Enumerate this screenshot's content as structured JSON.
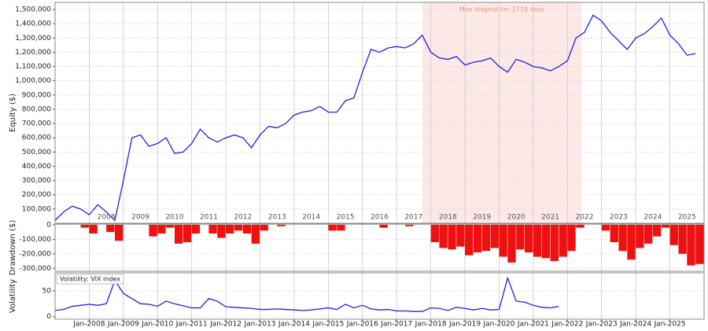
{
  "chart_data": [
    {
      "type": "line",
      "y_label": "Equity ($)",
      "color": "#2222dd",
      "x": [
        "2007-01",
        "2007-04",
        "2007-07",
        "2007-10",
        "2008-01",
        "2008-04",
        "2008-07",
        "2008-10",
        "2009-01",
        "2009-04",
        "2009-07",
        "2009-10",
        "2010-01",
        "2010-04",
        "2010-07",
        "2010-10",
        "2011-01",
        "2011-04",
        "2011-07",
        "2011-10",
        "2012-01",
        "2012-04",
        "2012-07",
        "2012-10",
        "2013-01",
        "2013-04",
        "2013-07",
        "2013-10",
        "2014-01",
        "2014-04",
        "2014-07",
        "2014-10",
        "2015-01",
        "2015-04",
        "2015-07",
        "2015-10",
        "2016-01",
        "2016-04",
        "2016-07",
        "2016-10",
        "2017-01",
        "2017-04",
        "2017-07",
        "2017-10",
        "2018-01",
        "2018-04",
        "2018-07",
        "2018-10",
        "2019-01",
        "2019-04",
        "2019-07",
        "2019-10",
        "2020-01",
        "2020-04",
        "2020-07",
        "2020-10",
        "2021-01",
        "2021-04",
        "2021-07",
        "2021-10",
        "2022-01",
        "2022-04",
        "2022-07",
        "2022-10",
        "2023-01",
        "2023-04",
        "2023-07",
        "2023-10",
        "2024-01",
        "2024-04",
        "2024-07",
        "2024-10",
        "2025-01",
        "2025-04",
        "2025-07",
        "2025-10"
      ],
      "values": [
        20000,
        80000,
        120000,
        100000,
        60000,
        130000,
        80000,
        20000,
        300000,
        600000,
        620000,
        540000,
        560000,
        600000,
        490000,
        500000,
        560000,
        660000,
        600000,
        570000,
        600000,
        620000,
        600000,
        530000,
        620000,
        680000,
        670000,
        700000,
        760000,
        780000,
        790000,
        820000,
        780000,
        780000,
        860000,
        880000,
        1060000,
        1220000,
        1200000,
        1230000,
        1240000,
        1230000,
        1260000,
        1320000,
        1200000,
        1160000,
        1150000,
        1170000,
        1110000,
        1130000,
        1140000,
        1160000,
        1100000,
        1060000,
        1150000,
        1130000,
        1100000,
        1090000,
        1070000,
        1100000,
        1140000,
        1300000,
        1340000,
        1460000,
        1420000,
        1340000,
        1280000,
        1220000,
        1300000,
        1330000,
        1380000,
        1440000,
        1320000,
        1260000,
        1180000,
        1190000
      ],
      "xlim": [
        "2007-01",
        "2026-01"
      ],
      "xticks": [
        {
          "value": "2008-07",
          "label": "2008"
        },
        {
          "value": "2009-07",
          "label": "2009"
        },
        {
          "value": "2010-07",
          "label": "2010"
        },
        {
          "value": "2011-07",
          "label": "2011"
        },
        {
          "value": "2012-07",
          "label": "2012"
        },
        {
          "value": "2013-07",
          "label": "2013"
        },
        {
          "value": "2014-07",
          "label": "2014"
        },
        {
          "value": "2015-07",
          "label": "2015"
        },
        {
          "value": "2016-07",
          "label": "2016"
        },
        {
          "value": "2017-07",
          "label": "2017"
        },
        {
          "value": "2018-07",
          "label": "2018"
        },
        {
          "value": "2019-07",
          "label": "2019"
        },
        {
          "value": "2020-07",
          "label": "2020"
        },
        {
          "value": "2021-07",
          "label": "2021"
        },
        {
          "value": "2022-07",
          "label": "2022"
        },
        {
          "value": "2023-07",
          "label": "2023"
        },
        {
          "value": "2024-07",
          "label": "2024"
        },
        {
          "value": "2025-07",
          "label": "2025"
        }
      ],
      "ylim": [
        0,
        1550000
      ],
      "yticks": [
        {
          "value": 100000,
          "label": "100,000"
        },
        {
          "value": 200000,
          "label": "200,000"
        },
        {
          "value": 300000,
          "label": "300,000"
        },
        {
          "value": 400000,
          "label": "400,000"
        },
        {
          "value": 500000,
          "label": "500,000"
        },
        {
          "value": 600000,
          "label": "600,000"
        },
        {
          "value": 700000,
          "label": "700,000"
        },
        {
          "value": 800000,
          "label": "800,000"
        },
        {
          "value": 900000,
          "label": "900,000"
        },
        {
          "value": 1000000,
          "label": "1,000,000"
        },
        {
          "value": 1100000,
          "label": "1,100,000"
        },
        {
          "value": 1200000,
          "label": "1,200,000"
        },
        {
          "value": 1300000,
          "label": "1,300,000"
        },
        {
          "value": 1400000,
          "label": "1,400,000"
        },
        {
          "value": 1500000,
          "label": "1,500,000"
        }
      ],
      "grid": true,
      "span": {
        "start": "2017-10",
        "end": "2022-06",
        "label": "Max stagnation: 1710 days",
        "color": "#fde8e8"
      }
    },
    {
      "type": "bar",
      "y_label": "Drawdown ($)",
      "color": "#ee1111",
      "x": [
        "2007-01",
        "2007-04",
        "2007-07",
        "2007-10",
        "2008-01",
        "2008-04",
        "2008-07",
        "2008-10",
        "2009-01",
        "2009-04",
        "2009-07",
        "2009-10",
        "2010-01",
        "2010-04",
        "2010-07",
        "2010-10",
        "2011-01",
        "2011-04",
        "2011-07",
        "2011-10",
        "2012-01",
        "2012-04",
        "2012-07",
        "2012-10",
        "2013-01",
        "2013-04",
        "2013-07",
        "2013-10",
        "2014-01",
        "2014-04",
        "2014-07",
        "2014-10",
        "2015-01",
        "2015-04",
        "2015-07",
        "2015-10",
        "2016-01",
        "2016-04",
        "2016-07",
        "2016-10",
        "2017-01",
        "2017-04",
        "2017-07",
        "2017-10",
        "2018-01",
        "2018-04",
        "2018-07",
        "2018-10",
        "2019-01",
        "2019-04",
        "2019-07",
        "2019-10",
        "2020-01",
        "2020-04",
        "2020-07",
        "2020-10",
        "2021-01",
        "2021-04",
        "2021-07",
        "2021-10",
        "2022-01",
        "2022-04",
        "2022-07",
        "2022-10",
        "2023-01",
        "2023-04",
        "2023-07",
        "2023-10",
        "2024-01",
        "2024-04",
        "2024-07",
        "2024-10",
        "2025-01",
        "2025-04",
        "2025-07",
        "2025-10"
      ],
      "values": [
        0,
        0,
        0,
        -20000,
        -60000,
        0,
        -50000,
        -110000,
        0,
        0,
        0,
        -80000,
        -60000,
        -20000,
        -130000,
        -120000,
        -60000,
        0,
        -60000,
        -90000,
        -60000,
        -40000,
        -60000,
        -130000,
        -40000,
        0,
        -10000,
        0,
        0,
        0,
        0,
        0,
        -40000,
        -40000,
        0,
        0,
        0,
        0,
        -20000,
        0,
        0,
        -10000,
        0,
        0,
        -120000,
        -160000,
        -170000,
        -150000,
        -210000,
        -190000,
        -180000,
        -160000,
        -220000,
        -260000,
        -170000,
        -190000,
        -220000,
        -230000,
        -250000,
        -220000,
        -180000,
        -20000,
        0,
        0,
        -40000,
        -120000,
        -180000,
        -240000,
        -160000,
        -130000,
        -80000,
        -20000,
        -140000,
        -200000,
        -280000,
        -270000
      ],
      "xlim": [
        "2007-01",
        "2026-01"
      ],
      "ylim": [
        -320000,
        5000
      ],
      "yticks": [
        0,
        {
          "value": -100000,
          "label": "-100,000"
        },
        {
          "value": -200000,
          "label": "-200,000"
        },
        {
          "value": -300000,
          "label": "-300,000"
        }
      ],
      "grid": true
    },
    {
      "type": "line",
      "y_label": "Volatility",
      "legend": "Volatility: VIX index",
      "color": "#2222dd",
      "x": [
        "2007-01",
        "2007-04",
        "2007-07",
        "2007-10",
        "2008-01",
        "2008-04",
        "2008-07",
        "2008-10",
        "2009-01",
        "2009-04",
        "2009-07",
        "2009-10",
        "2010-01",
        "2010-04",
        "2010-07",
        "2010-10",
        "2011-01",
        "2011-04",
        "2011-07",
        "2011-10",
        "2012-01",
        "2012-04",
        "2012-07",
        "2012-10",
        "2013-01",
        "2013-04",
        "2013-07",
        "2013-10",
        "2014-01",
        "2014-04",
        "2014-07",
        "2014-10",
        "2015-01",
        "2015-04",
        "2015-07",
        "2015-10",
        "2016-01",
        "2016-04",
        "2016-07",
        "2016-10",
        "2017-01",
        "2017-04",
        "2017-07",
        "2017-10",
        "2018-01",
        "2018-04",
        "2018-07",
        "2018-10",
        "2019-01",
        "2019-04",
        "2019-07",
        "2019-10",
        "2020-01",
        "2020-04",
        "2020-07",
        "2020-10",
        "2021-01",
        "2021-04",
        "2021-07",
        "2021-10"
      ],
      "values": [
        12,
        14,
        20,
        22,
        24,
        22,
        25,
        70,
        45,
        35,
        25,
        24,
        20,
        30,
        25,
        21,
        17,
        17,
        35,
        30,
        19,
        18,
        17,
        16,
        14,
        14,
        15,
        14,
        13,
        12,
        13,
        15,
        17,
        14,
        24,
        17,
        22,
        15,
        13,
        14,
        11,
        11,
        10,
        10,
        17,
        16,
        12,
        18,
        16,
        13,
        16,
        13,
        14,
        75,
        30,
        28,
        22,
        18,
        17,
        20
      ],
      "xlim": [
        "2007-01",
        "2026-01"
      ],
      "xticks": [
        {
          "value": "2008-01",
          "label": "Jan-2008"
        },
        {
          "value": "2009-01",
          "label": "Jan-2009"
        },
        {
          "value": "2010-01",
          "label": "Jan-2010"
        },
        {
          "value": "2011-01",
          "label": "Jan-2011"
        },
        {
          "value": "2012-01",
          "label": "Jan-2012"
        },
        {
          "value": "2013-01",
          "label": "Jan-2013"
        },
        {
          "value": "2014-01",
          "label": "Jan-2014"
        },
        {
          "value": "2015-01",
          "label": "Jan-2015"
        },
        {
          "value": "2016-01",
          "label": "Jan-2016"
        },
        {
          "value": "2017-01",
          "label": "Jan-2017"
        },
        {
          "value": "2018-01",
          "label": "Jan-2018"
        },
        {
          "value": "2019-01",
          "label": "Jan-2019"
        },
        {
          "value": "2020-01",
          "label": "Jan-2020"
        },
        {
          "value": "2021-01",
          "label": "Jan-2021"
        },
        {
          "value": "2022-01",
          "label": "Jan-2022"
        },
        {
          "value": "2023-01",
          "label": "Jan-2023"
        },
        {
          "value": "2024-01",
          "label": "Jan-2024"
        },
        {
          "value": "2025-01",
          "label": "Jan-2025"
        }
      ],
      "ylim": [
        -5,
        85
      ],
      "yticks": [
        0,
        50
      ],
      "grid": true
    }
  ]
}
